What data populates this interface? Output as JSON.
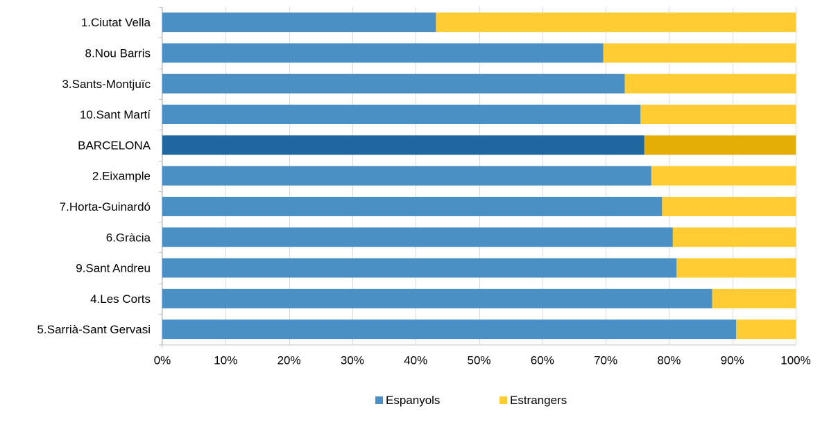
{
  "chart_data": {
    "type": "bar",
    "orientation": "horizontal",
    "stacked": "percent",
    "categories": [
      "1.Ciutat Vella",
      "8.Nou Barris",
      "3.Sants-Montjuïc",
      "10.Sant Martí",
      "BARCELONA",
      "2.Eixample",
      "7.Horta-Guinardó",
      "6.Gràcia",
      "9.Sant Andreu",
      "4.Les Corts",
      "5.Sarrià-Sant Gervasi"
    ],
    "series": [
      {
        "name": "Espanyols",
        "color": "#4a90c4",
        "values": [
          43.2,
          69.6,
          73.0,
          75.5,
          76.1,
          77.2,
          78.9,
          80.6,
          81.2,
          86.8,
          90.6
        ]
      },
      {
        "name": "Estrangers",
        "color": "#ffcc33",
        "values": [
          56.8,
          30.4,
          27.0,
          24.5,
          23.9,
          22.8,
          21.1,
          19.4,
          18.8,
          13.2,
          9.4
        ]
      }
    ],
    "highlight": {
      "category": "BARCELONA",
      "colors": [
        "#1e67a0",
        "#e5ae07"
      ]
    },
    "xlim": [
      0,
      100
    ],
    "x_ticks": [
      "0%",
      "10%",
      "20%",
      "30%",
      "40%",
      "50%",
      "60%",
      "70%",
      "80%",
      "90%",
      "100%"
    ],
    "grid": "vertical",
    "legend_position": "bottom",
    "title": "",
    "xlabel": "",
    "ylabel": ""
  }
}
